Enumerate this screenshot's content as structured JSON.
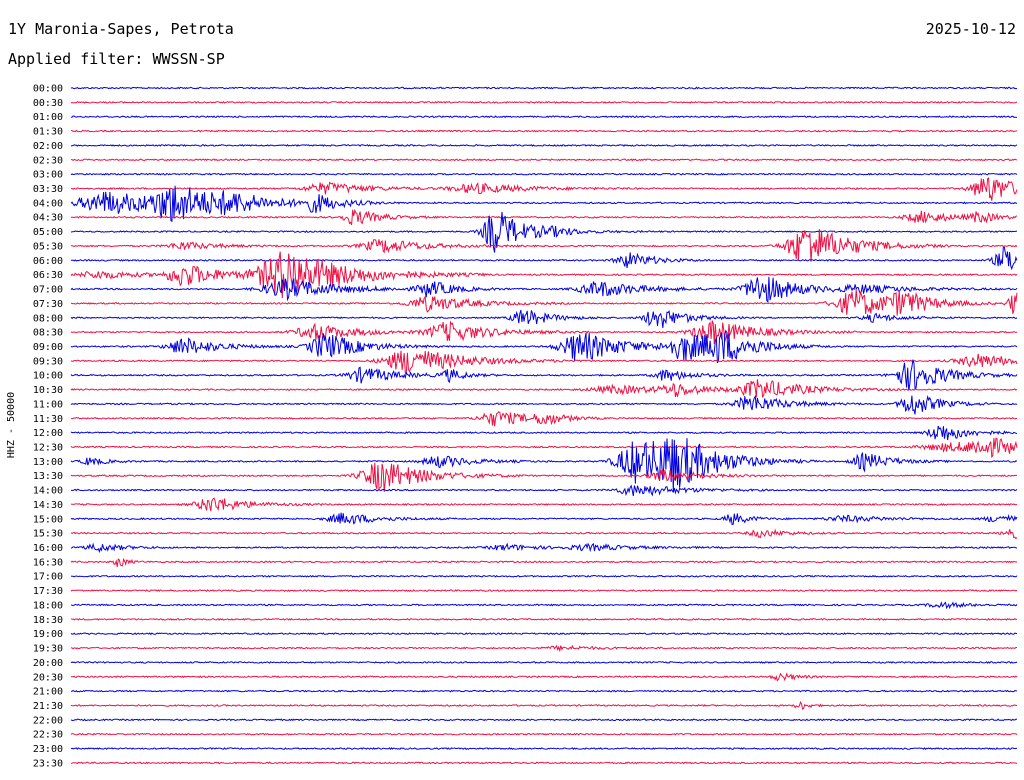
{
  "header": {
    "station": "1Y Maronia-Sapes, Petrota",
    "date": "2025-10-12",
    "filter": "Applied filter: WWSSN-SP"
  },
  "chart_data": {
    "type": "line",
    "subtype": "helicorder",
    "ylabel": "HHZ - 50000",
    "tick_labels": [
      "00:00",
      "00:30",
      "01:00",
      "01:30",
      "02:00",
      "02:30",
      "03:00",
      "03:30",
      "04:00",
      "04:30",
      "05:00",
      "05:30",
      "06:00",
      "06:30",
      "07:00",
      "07:30",
      "08:00",
      "08:30",
      "09:00",
      "09:30",
      "10:00",
      "10:30",
      "11:00",
      "11:30",
      "12:00",
      "12:30",
      "13:00",
      "13:30",
      "14:00",
      "14:30",
      "15:00",
      "15:30",
      "16:00",
      "16:30",
      "17:00",
      "17:30",
      "18:00",
      "18:30",
      "19:00",
      "19:30",
      "20:00",
      "20:30",
      "21:00",
      "21:30",
      "22:00",
      "22:30",
      "23:00",
      "23:30"
    ],
    "colors": [
      "#0000e0",
      "#ee1144"
    ],
    "grid": false,
    "events": [
      {
        "trace": "03:30",
        "x": 0.27,
        "amp": 6,
        "width": 0.05
      },
      {
        "trace": "03:30",
        "x": 0.43,
        "amp": 5,
        "width": 0.06
      },
      {
        "trace": "03:30",
        "x": 0.97,
        "amp": 14,
        "width": 0.04
      },
      {
        "trace": "04:00",
        "x": 0.04,
        "amp": 12,
        "width": 0.07
      },
      {
        "trace": "04:00",
        "x": 0.11,
        "amp": 18,
        "width": 0.05
      },
      {
        "trace": "04:00",
        "x": 0.17,
        "amp": 7,
        "width": 0.05
      },
      {
        "trace": "04:00",
        "x": 0.26,
        "amp": 9,
        "width": 0.03
      },
      {
        "trace": "04:30",
        "x": 0.3,
        "amp": 8,
        "width": 0.03
      },
      {
        "trace": "04:30",
        "x": 0.9,
        "amp": 6,
        "width": 0.04
      },
      {
        "trace": "04:30",
        "x": 0.96,
        "amp": 5,
        "width": 0.02
      },
      {
        "trace": "05:00",
        "x": 0.45,
        "amp": 24,
        "width": 0.03
      },
      {
        "trace": "05:00",
        "x": 0.51,
        "amp": 3,
        "width": 0.04
      },
      {
        "trace": "05:30",
        "x": 0.12,
        "amp": 4,
        "width": 0.04
      },
      {
        "trace": "05:30",
        "x": 0.33,
        "amp": 7,
        "width": 0.05
      },
      {
        "trace": "05:30",
        "x": 0.78,
        "amp": 22,
        "width": 0.05
      },
      {
        "trace": "06:00",
        "x": 0.59,
        "amp": 8,
        "width": 0.03
      },
      {
        "trace": "06:00",
        "x": 0.99,
        "amp": 14,
        "width": 0.03
      },
      {
        "trace": "06:30",
        "x": 0.03,
        "amp": 4,
        "width": 0.05
      },
      {
        "trace": "06:30",
        "x": 0.12,
        "amp": 12,
        "width": 0.04
      },
      {
        "trace": "06:30",
        "x": 0.23,
        "amp": 26,
        "width": 0.07
      },
      {
        "trace": "07:00",
        "x": 0.23,
        "amp": 10,
        "width": 0.06
      },
      {
        "trace": "07:00",
        "x": 0.38,
        "amp": 8,
        "width": 0.03
      },
      {
        "trace": "07:00",
        "x": 0.56,
        "amp": 8,
        "width": 0.05
      },
      {
        "trace": "07:00",
        "x": 0.73,
        "amp": 16,
        "width": 0.04
      },
      {
        "trace": "07:00",
        "x": 0.84,
        "amp": 4,
        "width": 0.06
      },
      {
        "trace": "07:30",
        "x": 0.38,
        "amp": 8,
        "width": 0.05
      },
      {
        "trace": "07:30",
        "x": 0.83,
        "amp": 14,
        "width": 0.05
      },
      {
        "trace": "07:30",
        "x": 0.88,
        "amp": 10,
        "width": 0.03
      },
      {
        "trace": "07:30",
        "x": 1.0,
        "amp": 14,
        "width": 0.02
      },
      {
        "trace": "08:00",
        "x": 0.48,
        "amp": 9,
        "width": 0.03
      },
      {
        "trace": "08:00",
        "x": 0.62,
        "amp": 12,
        "width": 0.03
      },
      {
        "trace": "08:00",
        "x": 0.85,
        "amp": 4,
        "width": 0.03
      },
      {
        "trace": "08:30",
        "x": 0.26,
        "amp": 8,
        "width": 0.05
      },
      {
        "trace": "08:30",
        "x": 0.4,
        "amp": 10,
        "width": 0.05
      },
      {
        "trace": "08:30",
        "x": 0.68,
        "amp": 12,
        "width": 0.05
      },
      {
        "trace": "09:00",
        "x": 0.12,
        "amp": 9,
        "width": 0.04
      },
      {
        "trace": "09:00",
        "x": 0.27,
        "amp": 14,
        "width": 0.04
      },
      {
        "trace": "09:00",
        "x": 0.54,
        "amp": 16,
        "width": 0.05
      },
      {
        "trace": "09:00",
        "x": 0.65,
        "amp": 14,
        "width": 0.04
      },
      {
        "trace": "09:00",
        "x": 0.69,
        "amp": 14,
        "width": 0.04
      },
      {
        "trace": "09:30",
        "x": 0.36,
        "amp": 14,
        "width": 0.06
      },
      {
        "trace": "09:30",
        "x": 0.96,
        "amp": 7,
        "width": 0.05
      },
      {
        "trace": "10:00",
        "x": 0.31,
        "amp": 8,
        "width": 0.04
      },
      {
        "trace": "10:00",
        "x": 0.4,
        "amp": 6,
        "width": 0.02
      },
      {
        "trace": "10:00",
        "x": 0.63,
        "amp": 6,
        "width": 0.03
      },
      {
        "trace": "10:00",
        "x": 0.89,
        "amp": 16,
        "width": 0.04
      },
      {
        "trace": "10:30",
        "x": 0.58,
        "amp": 4,
        "width": 0.07
      },
      {
        "trace": "10:30",
        "x": 0.64,
        "amp": 6,
        "width": 0.03
      },
      {
        "trace": "10:30",
        "x": 0.73,
        "amp": 10,
        "width": 0.05
      },
      {
        "trace": "11:00",
        "x": 0.72,
        "amp": 9,
        "width": 0.04
      },
      {
        "trace": "11:00",
        "x": 0.89,
        "amp": 12,
        "width": 0.03
      },
      {
        "trace": "11:30",
        "x": 0.45,
        "amp": 8,
        "width": 0.04
      },
      {
        "trace": "11:30",
        "x": 0.5,
        "amp": 6,
        "width": 0.02
      },
      {
        "trace": "12:00",
        "x": 0.92,
        "amp": 10,
        "width": 0.03
      },
      {
        "trace": "12:30",
        "x": 0.93,
        "amp": 4,
        "width": 0.07
      },
      {
        "trace": "12:30",
        "x": 0.97,
        "amp": 8,
        "width": 0.05
      },
      {
        "trace": "13:00",
        "x": 0.02,
        "amp": 4,
        "width": 0.02
      },
      {
        "trace": "13:00",
        "x": 0.39,
        "amp": 6,
        "width": 0.04
      },
      {
        "trace": "13:00",
        "x": 0.6,
        "amp": 22,
        "width": 0.05
      },
      {
        "trace": "13:00",
        "x": 0.64,
        "amp": 22,
        "width": 0.05
      },
      {
        "trace": "13:00",
        "x": 0.84,
        "amp": 9,
        "width": 0.03
      },
      {
        "trace": "13:30",
        "x": 0.33,
        "amp": 16,
        "width": 0.05
      },
      {
        "trace": "13:30",
        "x": 0.63,
        "amp": 6,
        "width": 0.04
      },
      {
        "trace": "14:00",
        "x": 0.6,
        "amp": 6,
        "width": 0.05
      },
      {
        "trace": "14:30",
        "x": 0.15,
        "amp": 8,
        "width": 0.04
      },
      {
        "trace": "15:00",
        "x": 0.29,
        "amp": 6,
        "width": 0.04
      },
      {
        "trace": "15:00",
        "x": 0.7,
        "amp": 6,
        "width": 0.02
      },
      {
        "trace": "15:00",
        "x": 0.82,
        "amp": 3,
        "width": 0.05
      },
      {
        "trace": "15:00",
        "x": 0.98,
        "amp": 4,
        "width": 0.03
      },
      {
        "trace": "15:30",
        "x": 0.73,
        "amp": 4,
        "width": 0.03
      },
      {
        "trace": "15:30",
        "x": 1.0,
        "amp": 5,
        "width": 0.03
      },
      {
        "trace": "16:00",
        "x": 0.03,
        "amp": 4,
        "width": 0.03
      },
      {
        "trace": "16:00",
        "x": 0.46,
        "amp": 3,
        "width": 0.04
      },
      {
        "trace": "16:00",
        "x": 0.55,
        "amp": 3,
        "width": 0.05
      },
      {
        "trace": "16:30",
        "x": 0.05,
        "amp": 6,
        "width": 0.01
      },
      {
        "trace": "18:00",
        "x": 0.92,
        "amp": 3,
        "width": 0.03
      },
      {
        "trace": "19:30",
        "x": 0.52,
        "amp": 2,
        "width": 0.04
      },
      {
        "trace": "20:30",
        "x": 0.75,
        "amp": 4,
        "width": 0.02
      },
      {
        "trace": "21:30",
        "x": 0.77,
        "amp": 5,
        "width": 0.01
      }
    ]
  }
}
